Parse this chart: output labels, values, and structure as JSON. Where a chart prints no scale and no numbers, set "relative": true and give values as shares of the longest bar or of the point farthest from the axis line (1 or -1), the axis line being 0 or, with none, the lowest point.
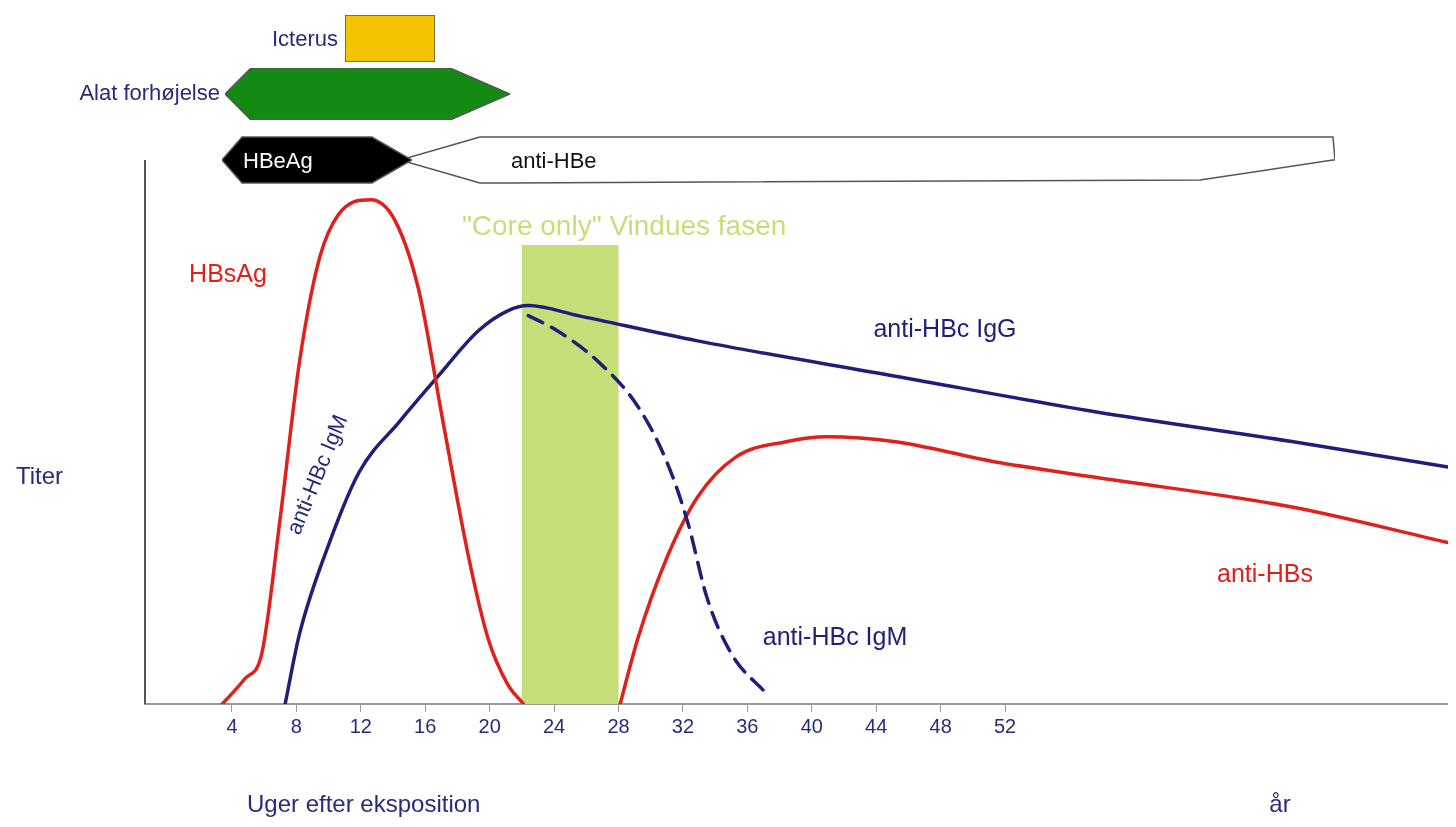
{
  "chart_data": {
    "type": "line",
    "relative": true,
    "xlabel": "Uger efter eksposition",
    "ylabel": "Titer",
    "xlim": [
      -1.4,
      79.5
    ],
    "xticks": [
      4,
      8,
      12,
      16,
      20,
      24,
      28,
      32,
      36,
      40,
      44,
      48,
      52
    ],
    "grid": false,
    "marker": "none",
    "line_style": "solid",
    "series": [
      {
        "name": "HBsAg",
        "color": "#e0201b",
        "x": [
          3.4,
          4.8,
          5.85,
          7.0,
          8.2,
          9.4,
          10.6,
          12.6,
          14.1,
          15.6,
          17.1,
          18.7,
          19.9,
          21.1,
          22.1
        ],
        "values": [
          0,
          0.05,
          0.1,
          0.37,
          0.68,
          0.88,
          0.97,
          1,
          0.96,
          0.82,
          0.56,
          0.29,
          0.13,
          0.04,
          0
        ]
      },
      {
        "name": "anti-HBc IgG",
        "color": "#1f1f7a",
        "x": [
          7.3,
          8.2,
          10.05,
          11.9,
          14.4,
          16.8,
          19.3,
          21.15,
          22.4,
          25.5,
          32.9,
          45.2,
          57.5,
          69.9,
          79.5
        ],
        "values": [
          0,
          0.14,
          0.32,
          0.46,
          0.56,
          0.65,
          0.74,
          0.78,
          0.79,
          0.77,
          0.72,
          0.65,
          0.58,
          0.52,
          0.47
        ]
      },
      {
        "name": "anti-HBc IgM",
        "color": "#1f1f7a",
        "line_style": "dashed",
        "x": [
          22.4,
          24.2,
          26.7,
          29.2,
          31.0,
          32.3,
          33.5,
          35.0,
          37.2
        ],
        "values": [
          0.77,
          0.74,
          0.68,
          0.59,
          0.48,
          0.36,
          0.21,
          0.1,
          0.02
        ]
      },
      {
        "name": "anti-HBs",
        "color": "#e0201b",
        "x": [
          28.1,
          29.2,
          31.0,
          32.9,
          35.3,
          38.4,
          40.9,
          45.2,
          51.4,
          57.5,
          69.9,
          79.5
        ],
        "values": [
          0,
          0.13,
          0.29,
          0.41,
          0.49,
          0.52,
          0.53,
          0.52,
          0.48,
          0.45,
          0.39,
          0.32
        ]
      }
    ],
    "bands": [
      {
        "axis": "x",
        "from": 22,
        "to": 28,
        "label": "\"Core only\" Vindues fasen",
        "color": "#c5de7a"
      }
    ],
    "annotations": [
      "Icterus",
      "Alat forhøjelse",
      "HBeAg",
      "anti-HBe",
      "anti-HBc IgM",
      "år"
    ]
  }
}
